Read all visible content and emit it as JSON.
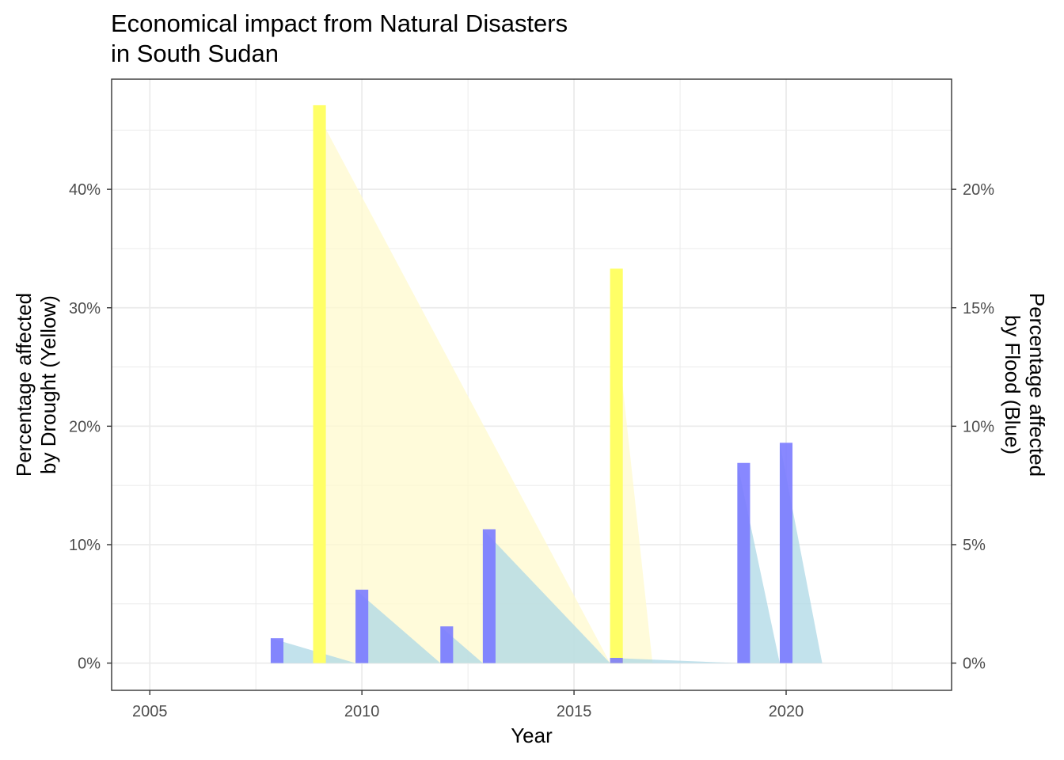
{
  "chart_data": {
    "type": "bar",
    "title_lines": [
      "Economical impact from Natural Disasters",
      "in South Sudan"
    ],
    "xlabel": "Year",
    "ylabel_left_lines": [
      "Percentage affected",
      "by Drought (Yellow)"
    ],
    "ylabel_right_lines": [
      "Percentage affected",
      "by Flood (Blue)"
    ],
    "xlim": [
      2004.1,
      2023.9
    ],
    "ylim_left": [
      -0.023,
      0.493
    ],
    "ylim_right": [
      -0.0115,
      0.2465
    ],
    "x_ticks": [
      {
        "value": 2005,
        "label": "2005"
      },
      {
        "value": 2010,
        "label": "2010"
      },
      {
        "value": 2015,
        "label": "2015"
      },
      {
        "value": 2020,
        "label": "2020"
      }
    ],
    "y_left_ticks": [
      {
        "value": 0.0,
        "label": "0%"
      },
      {
        "value": 0.1,
        "label": "10%"
      },
      {
        "value": 0.2,
        "label": "20%"
      },
      {
        "value": 0.3,
        "label": "30%"
      },
      {
        "value": 0.4,
        "label": "40%"
      }
    ],
    "y_right_ticks": [
      {
        "value": 0.0,
        "label": "0%"
      },
      {
        "value": 0.05,
        "label": "5%"
      },
      {
        "value": 0.1,
        "label": "10%"
      },
      {
        "value": 0.15,
        "label": "15%"
      },
      {
        "value": 0.2,
        "label": "20%"
      }
    ],
    "grid": true,
    "series": [
      {
        "key": "drought",
        "axis": "left",
        "color": "#ffff66",
        "area_color": "#fffacd",
        "points": [
          {
            "x": 2009,
            "y": 0.471
          },
          {
            "x": 2016,
            "y": 0.333
          }
        ]
      },
      {
        "key": "flood",
        "axis": "right",
        "color": "#7b7bff",
        "area_color": "#add8e6",
        "points": [
          {
            "x": 2008,
            "y": 0.0105
          },
          {
            "x": 2010,
            "y": 0.031
          },
          {
            "x": 2012,
            "y": 0.0155
          },
          {
            "x": 2013,
            "y": 0.0565
          },
          {
            "x": 2016,
            "y": 0.0022
          },
          {
            "x": 2019,
            "y": 0.0845
          },
          {
            "x": 2020,
            "y": 0.093
          }
        ]
      }
    ]
  }
}
